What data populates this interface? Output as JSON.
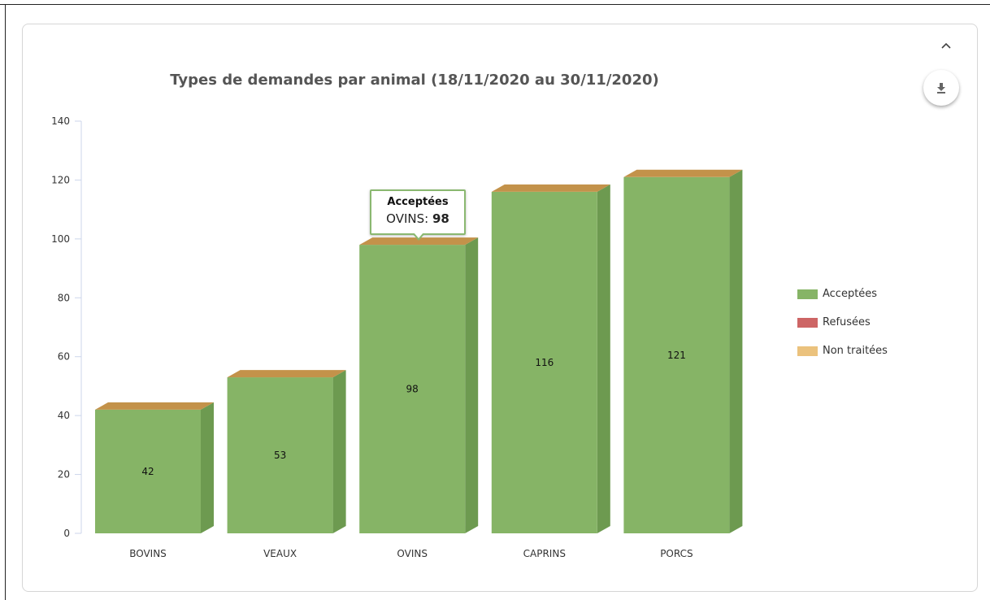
{
  "chart_data": {
    "type": "bar",
    "title": "Types de demandes par animal (18/11/2020 au 30/11/2020)",
    "categories": [
      "BOVINS",
      "VEAUX",
      "OVINS",
      "CAPRINS",
      "PORCS"
    ],
    "series": [
      {
        "name": "Acceptées",
        "values": [
          42,
          53,
          98,
          116,
          121
        ],
        "color": "#86b466"
      },
      {
        "name": "Refusées",
        "values": [
          0,
          0,
          0,
          0,
          0
        ],
        "color": "#cd6565"
      },
      {
        "name": "Non traitées",
        "values": [
          0,
          0,
          0,
          0,
          0
        ],
        "color": "#ebc27d"
      }
    ],
    "data_labels": [
      "42",
      "53",
      "98",
      "116",
      "121"
    ],
    "ylim": [
      0,
      140
    ],
    "yticks": [
      0,
      20,
      40,
      60,
      80,
      100,
      120,
      140
    ],
    "ytick_labels": [
      "0",
      "20",
      "40",
      "60",
      "80",
      "100",
      "120",
      "140"
    ],
    "legend_position": "right",
    "grid": false,
    "style": "3d"
  },
  "tooltip": {
    "title": "Acceptées",
    "category": "OVINS:",
    "value": "98"
  },
  "controls": {
    "collapse_icon": "chevron-up-icon",
    "download_icon": "download-icon"
  },
  "colors": {
    "accepted_side": "#6d9a50",
    "top_face": "#c3924a"
  }
}
